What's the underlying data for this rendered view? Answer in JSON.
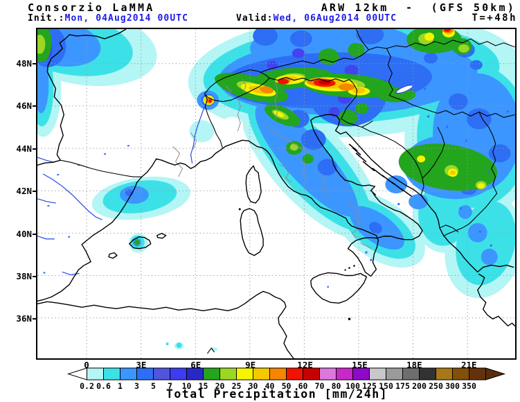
{
  "header": {
    "brand": "Consorzio LaMMA",
    "model_title": "ARW 12km  -  (GFS 50km)",
    "init_label": "Init.:",
    "init_value": "Mon, 04Aug2014 00UTC",
    "valid_label": "Valid:",
    "valid_value": "Wed, 06Aug2014 00UTC",
    "lead_time": "T=+48h",
    "value_color": "#1c1ce8"
  },
  "map": {
    "lat_labels": [
      "48N",
      "46N",
      "44N",
      "42N",
      "40N",
      "38N",
      "36N"
    ],
    "lon_labels": [
      "0",
      "3E",
      "6E",
      "9E",
      "12E",
      "15E",
      "18E",
      "21E"
    ]
  },
  "colorbar": {
    "caption": "Total Precipitation [mm/24h]",
    "unit": "mm/24h",
    "tick_labels": [
      "0.2",
      "0.6",
      "1",
      "3",
      "5",
      "7",
      "10",
      "15",
      "20",
      "25",
      "30",
      "40",
      "50",
      "60",
      "70",
      "80",
      "100",
      "125",
      "150",
      "175",
      "200",
      "250",
      "300",
      "350"
    ],
    "cell_colors": [
      "#b4f5f5",
      "#3ce1e8",
      "#3c96ff",
      "#2d6ef5",
      "#5055dc",
      "#3c3cf0",
      "#2828c8",
      "#23a51e",
      "#9bd723",
      "#f5f500",
      "#f5c800",
      "#f58700",
      "#f01400",
      "#c80000",
      "#dc78dc",
      "#c828c8",
      "#8c0ac8",
      "#c8c8c8",
      "#9b9b9b",
      "#6e6e6e",
      "#323232",
      "#a87818",
      "#82500a",
      "#64320a"
    ],
    "left_arrow_color": "#ffffff",
    "right_arrow_color": "#5a2d0a"
  }
}
